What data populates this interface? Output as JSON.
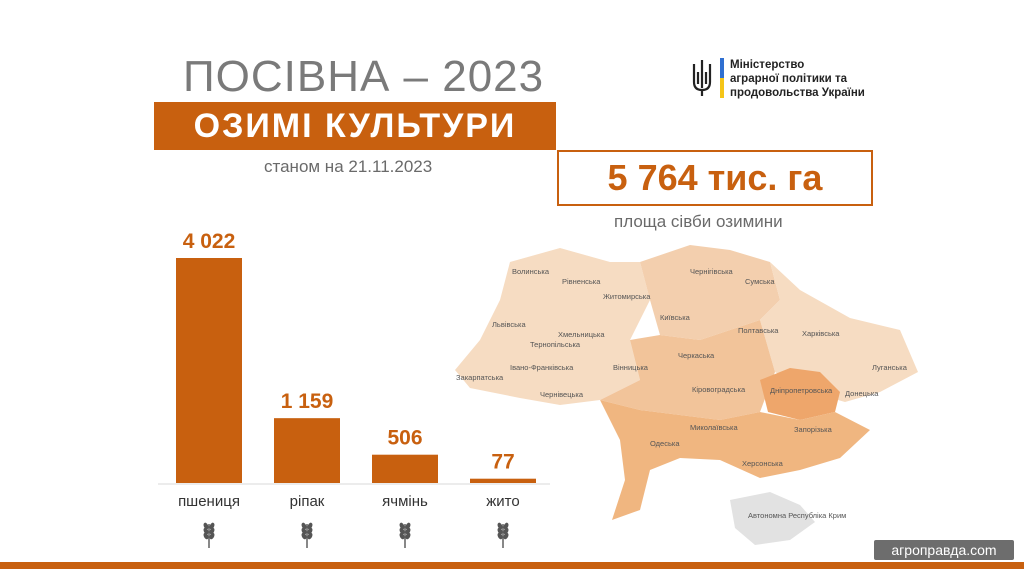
{
  "header": {
    "title": "ПОСІВНА – 2023",
    "subtitle": "ОЗИМІ КУЛЬТУРИ",
    "date": "станом на 21.11.2023"
  },
  "total": {
    "value": "5 764 тис. га",
    "label": "площа сівби озимини"
  },
  "ministry": {
    "line1": "Міністерство",
    "line2": "аграрної політики та",
    "line3": "продовольства України"
  },
  "chart_data": {
    "type": "bar",
    "categories": [
      "пшениця",
      "ріпак",
      "ячмінь",
      "жито"
    ],
    "values": [
      4022,
      1159,
      506,
      77
    ],
    "value_labels": [
      "4 022",
      "1 159",
      "506",
      "77"
    ],
    "title": "",
    "xlabel": "",
    "ylabel": "",
    "ylim": [
      0,
      4022
    ],
    "grid": false,
    "bar_color": "#c8600f",
    "category_icons": [
      "wheat-icon",
      "rapeseed-icon",
      "barley-icon",
      "rye-icon"
    ]
  },
  "map": {
    "regions": [
      "Волинська",
      "Рівненська",
      "Житомирська",
      "Чернігівська",
      "Сумська",
      "Львівська",
      "Хмельницька",
      "Київська",
      "Тернопільська",
      "Полтавська",
      "Харківська",
      "Івано-Франківська",
      "Вінницька",
      "Черкаська",
      "Луганська",
      "Закарпатська",
      "Чернівецька",
      "Кіровоградська",
      "Дніпропетровська",
      "Донецька",
      "Одеська",
      "Миколаївська",
      "Запорізька",
      "Херсонська",
      "Автономна Республіка Крим"
    ]
  },
  "watermark": "агроправда.com",
  "colors": {
    "accent": "#c8600f",
    "text_gray": "#6a6a6a"
  }
}
